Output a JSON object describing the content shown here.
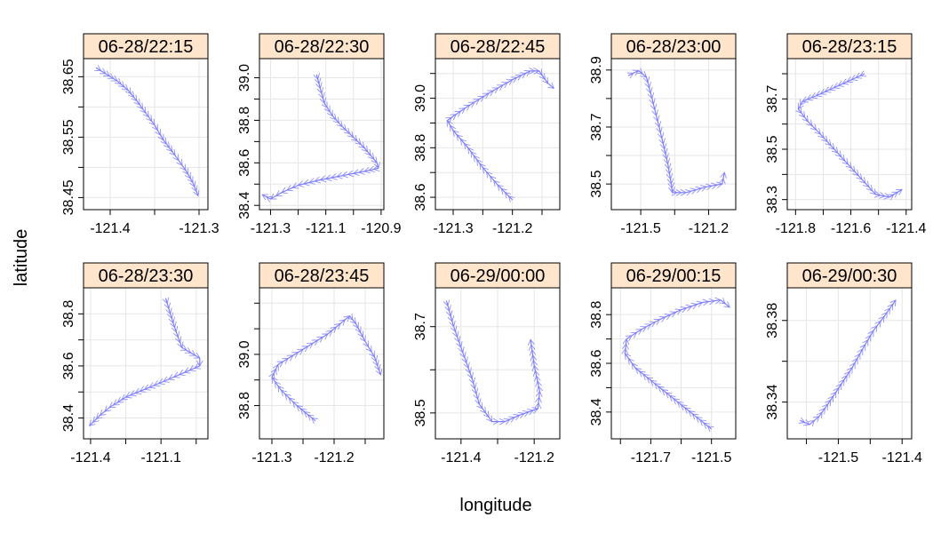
{
  "chart_data": {
    "type": "line",
    "layout": "trellis 5x2",
    "xlabel": "longitude",
    "ylabel": "latitude",
    "grid": true,
    "marker": "arrowheads along track",
    "colors": {
      "track": "#7d7dff",
      "strip_bg": "#ffe5cc",
      "grid": "#e6e6e6",
      "frame": "#000000"
    },
    "panels": [
      {
        "strip": "06-28/22:15",
        "xlim": [
          -121.43,
          -121.29
        ],
        "ylim": [
          38.43,
          38.68
        ],
        "xticks": [
          -121.4,
          -121.35,
          -121.3
        ],
        "xticklabels": [
          "-121.4",
          "",
          "-121.3"
        ],
        "yticks": [
          38.45,
          38.5,
          38.55,
          38.6,
          38.65
        ],
        "yticklabels": [
          "38.45",
          "",
          "38.55",
          "",
          "38.65"
        ],
        "track": [
          [
            -121.416,
            38.665
          ],
          [
            -121.405,
            38.655
          ],
          [
            -121.392,
            38.643
          ],
          [
            -121.38,
            38.628
          ],
          [
            -121.37,
            38.61
          ],
          [
            -121.36,
            38.59
          ],
          [
            -121.35,
            38.57
          ],
          [
            -121.34,
            38.545
          ],
          [
            -121.327,
            38.52
          ],
          [
            -121.315,
            38.495
          ],
          [
            -121.307,
            38.475
          ],
          [
            -121.301,
            38.453
          ]
        ]
      },
      {
        "strip": "06-28/22:30",
        "xlim": [
          -121.34,
          -120.89
        ],
        "ylim": [
          38.38,
          39.09
        ],
        "xticks": [
          -121.3,
          -121.2,
          -121.1,
          -121.0,
          -120.9
        ],
        "xticklabels": [
          "-121.3",
          "",
          "-121.1",
          "",
          "-120.9"
        ],
        "yticks": [
          38.4,
          38.5,
          38.6,
          38.7,
          38.8,
          38.9,
          39.0
        ],
        "yticklabels": [
          "38.4",
          "",
          "38.6",
          "",
          "38.8",
          "",
          "39.0"
        ],
        "track": [
          [
            -121.133,
            39.015
          ],
          [
            -121.12,
            38.95
          ],
          [
            -121.105,
            38.88
          ],
          [
            -121.075,
            38.82
          ],
          [
            -121.04,
            38.77
          ],
          [
            -121.0,
            38.72
          ],
          [
            -120.96,
            38.67
          ],
          [
            -120.915,
            38.6
          ],
          [
            -120.91,
            38.575
          ],
          [
            -120.96,
            38.56
          ],
          [
            -121.04,
            38.54
          ],
          [
            -121.12,
            38.52
          ],
          [
            -121.2,
            38.495
          ],
          [
            -121.26,
            38.46
          ],
          [
            -121.3,
            38.43
          ],
          [
            -121.33,
            38.45
          ]
        ]
      },
      {
        "strip": "06-28/22:45",
        "xlim": [
          -121.33,
          -121.12
        ],
        "ylim": [
          38.55,
          39.16
        ],
        "xticks": [
          -121.3,
          -121.25,
          -121.2,
          -121.15
        ],
        "xticklabels": [
          "-121.3",
          "",
          "-121.2",
          ""
        ],
        "yticks": [
          38.6,
          38.7,
          38.8,
          38.9,
          39.0,
          39.1
        ],
        "yticklabels": [
          "38.6",
          "",
          "38.8",
          "",
          "39.0",
          ""
        ],
        "track": [
          [
            -121.2,
            38.59
          ],
          [
            -121.225,
            38.65
          ],
          [
            -121.25,
            38.72
          ],
          [
            -121.275,
            38.8
          ],
          [
            -121.3,
            38.87
          ],
          [
            -121.31,
            38.91
          ],
          [
            -121.28,
            38.96
          ],
          [
            -121.24,
            39.02
          ],
          [
            -121.2,
            39.075
          ],
          [
            -121.17,
            39.11
          ],
          [
            -121.155,
            39.11
          ],
          [
            -121.14,
            39.06
          ],
          [
            -121.13,
            39.04
          ]
        ]
      },
      {
        "strip": "06-28/23:00",
        "xlim": [
          -121.63,
          -121.08
        ],
        "ylim": [
          38.41,
          38.94
        ],
        "xticks": [
          -121.5,
          -121.35,
          -121.2
        ],
        "xticklabels": [
          "-121.5",
          "",
          "-121.2"
        ],
        "yticks": [
          38.5,
          38.6,
          38.7,
          38.8,
          38.9
        ],
        "yticklabels": [
          "38.5",
          "",
          "38.7",
          "",
          "38.9"
        ],
        "track": [
          [
            -121.555,
            38.88
          ],
          [
            -121.51,
            38.898
          ],
          [
            -121.475,
            38.875
          ],
          [
            -121.45,
            38.8
          ],
          [
            -121.425,
            38.72
          ],
          [
            -121.4,
            38.64
          ],
          [
            -121.38,
            38.57
          ],
          [
            -121.365,
            38.5
          ],
          [
            -121.36,
            38.47
          ],
          [
            -121.3,
            38.47
          ],
          [
            -121.21,
            38.49
          ],
          [
            -121.14,
            38.5
          ],
          [
            -121.13,
            38.54
          ]
        ]
      },
      {
        "strip": "06-28/23:15",
        "xlim": [
          -121.83,
          -121.38
        ],
        "ylim": [
          38.26,
          38.86
        ],
        "xticks": [
          -121.8,
          -121.7,
          -121.6,
          -121.5,
          -121.4
        ],
        "xticklabels": [
          "-121.8",
          "",
          "-121.6",
          "",
          "-121.4"
        ],
        "yticks": [
          38.3,
          38.4,
          38.5,
          38.6,
          38.7,
          38.8
        ],
        "yticklabels": [
          "38.3",
          "",
          "38.5",
          "",
          "38.7",
          ""
        ],
        "track": [
          [
            -121.55,
            38.8
          ],
          [
            -121.63,
            38.76
          ],
          [
            -121.71,
            38.72
          ],
          [
            -121.775,
            38.69
          ],
          [
            -121.79,
            38.66
          ],
          [
            -121.755,
            38.61
          ],
          [
            -121.71,
            38.56
          ],
          [
            -121.66,
            38.5
          ],
          [
            -121.61,
            38.44
          ],
          [
            -121.56,
            38.38
          ],
          [
            -121.51,
            38.32
          ],
          [
            -121.46,
            38.31
          ],
          [
            -121.415,
            38.34
          ]
        ]
      },
      {
        "strip": "06-28/23:30",
        "xlim": [
          -121.43,
          -120.9
        ],
        "ylim": [
          38.32,
          38.9
        ],
        "xticks": [
          -121.4,
          -121.25,
          -121.1,
          -120.95
        ],
        "xticklabels": [
          "-121.4",
          "",
          "-121.1",
          ""
        ],
        "yticks": [
          38.4,
          38.5,
          38.6,
          38.7,
          38.8
        ],
        "yticklabels": [
          "38.4",
          "",
          "38.6",
          "",
          "38.8"
        ],
        "track": [
          [
            -121.08,
            38.86
          ],
          [
            -121.06,
            38.8
          ],
          [
            -121.035,
            38.73
          ],
          [
            -121.01,
            38.67
          ],
          [
            -120.935,
            38.63
          ],
          [
            -120.935,
            38.6
          ],
          [
            -121.0,
            38.575
          ],
          [
            -121.09,
            38.54
          ],
          [
            -121.17,
            38.51
          ],
          [
            -121.25,
            38.48
          ],
          [
            -121.32,
            38.44
          ],
          [
            -121.36,
            38.41
          ],
          [
            -121.405,
            38.37
          ]
        ]
      },
      {
        "strip": "06-28/23:45",
        "xlim": [
          -121.32,
          -121.12
        ],
        "ylim": [
          38.67,
          39.26
        ],
        "xticks": [
          -121.3,
          -121.25,
          -121.2,
          -121.15
        ],
        "xticklabels": [
          "-121.3",
          "",
          "-121.2",
          ""
        ],
        "yticks": [
          38.8,
          38.9,
          39.0,
          39.1,
          39.2
        ],
        "yticklabels": [
          "38.8",
          "",
          "39.0",
          "",
          ""
        ],
        "track": [
          [
            -121.23,
            38.74
          ],
          [
            -121.26,
            38.8
          ],
          [
            -121.285,
            38.86
          ],
          [
            -121.3,
            38.91
          ],
          [
            -121.29,
            38.96
          ],
          [
            -121.25,
            39.02
          ],
          [
            -121.21,
            39.08
          ],
          [
            -121.19,
            39.12
          ],
          [
            -121.175,
            39.15
          ],
          [
            -121.165,
            39.12
          ],
          [
            -121.15,
            39.05
          ],
          [
            -121.135,
            38.99
          ],
          [
            -121.125,
            38.92
          ]
        ]
      },
      {
        "strip": "06-29/00:00",
        "xlim": [
          -121.47,
          -121.13
        ],
        "ylim": [
          38.44,
          38.79
        ],
        "xticks": [
          -121.4,
          -121.3,
          -121.2
        ],
        "xticklabels": [
          "-121.4",
          "",
          "-121.2"
        ],
        "yticks": [
          38.5,
          38.6,
          38.7
        ],
        "yticklabels": [
          "38.5",
          "",
          "38.7"
        ],
        "track": [
          [
            -121.44,
            38.76
          ],
          [
            -121.42,
            38.7
          ],
          [
            -121.395,
            38.64
          ],
          [
            -121.37,
            38.58
          ],
          [
            -121.35,
            38.52
          ],
          [
            -121.315,
            38.48
          ],
          [
            -121.28,
            38.48
          ],
          [
            -121.24,
            38.495
          ],
          [
            -121.19,
            38.51
          ],
          [
            -121.185,
            38.55
          ],
          [
            -121.2,
            38.61
          ],
          [
            -121.21,
            38.67
          ]
        ]
      },
      {
        "strip": "06-29/00:15",
        "xlim": [
          -121.83,
          -121.42
        ],
        "ylim": [
          38.29,
          38.91
        ],
        "xticks": [
          -121.8,
          -121.7,
          -121.6,
          -121.5
        ],
        "xticklabels": [
          "",
          "-121.7",
          "",
          "-121.5"
        ],
        "yticks": [
          38.4,
          38.5,
          38.6,
          38.7,
          38.8
        ],
        "yticklabels": [
          "38.4",
          "",
          "38.6",
          "",
          "38.8"
        ],
        "track": [
          [
            -121.5,
            38.33
          ],
          [
            -121.55,
            38.38
          ],
          [
            -121.6,
            38.43
          ],
          [
            -121.65,
            38.48
          ],
          [
            -121.7,
            38.53
          ],
          [
            -121.75,
            38.58
          ],
          [
            -121.785,
            38.64
          ],
          [
            -121.78,
            38.7
          ],
          [
            -121.73,
            38.74
          ],
          [
            -121.67,
            38.78
          ],
          [
            -121.6,
            38.82
          ],
          [
            -121.53,
            38.85
          ],
          [
            -121.47,
            38.86
          ],
          [
            -121.44,
            38.83
          ]
        ]
      },
      {
        "strip": "06-29/00:30",
        "xlim": [
          -121.58,
          -121.385
        ],
        "ylim": [
          38.322,
          38.396
        ],
        "xticks": [
          -121.55,
          -121.5,
          -121.45,
          -121.4
        ],
        "xticklabels": [
          "",
          "-121.5",
          "",
          "-121.4"
        ],
        "yticks": [
          38.34,
          38.36,
          38.38
        ],
        "yticklabels": [
          "38.34",
          "",
          "38.38"
        ],
        "track": [
          [
            -121.56,
            38.331
          ],
          [
            -121.545,
            38.329
          ],
          [
            -121.53,
            38.333
          ],
          [
            -121.512,
            38.341
          ],
          [
            -121.495,
            38.349
          ],
          [
            -121.478,
            38.357
          ],
          [
            -121.462,
            38.366
          ],
          [
            -121.445,
            38.375
          ],
          [
            -121.428,
            38.382
          ],
          [
            -121.41,
            38.39
          ]
        ]
      }
    ]
  }
}
